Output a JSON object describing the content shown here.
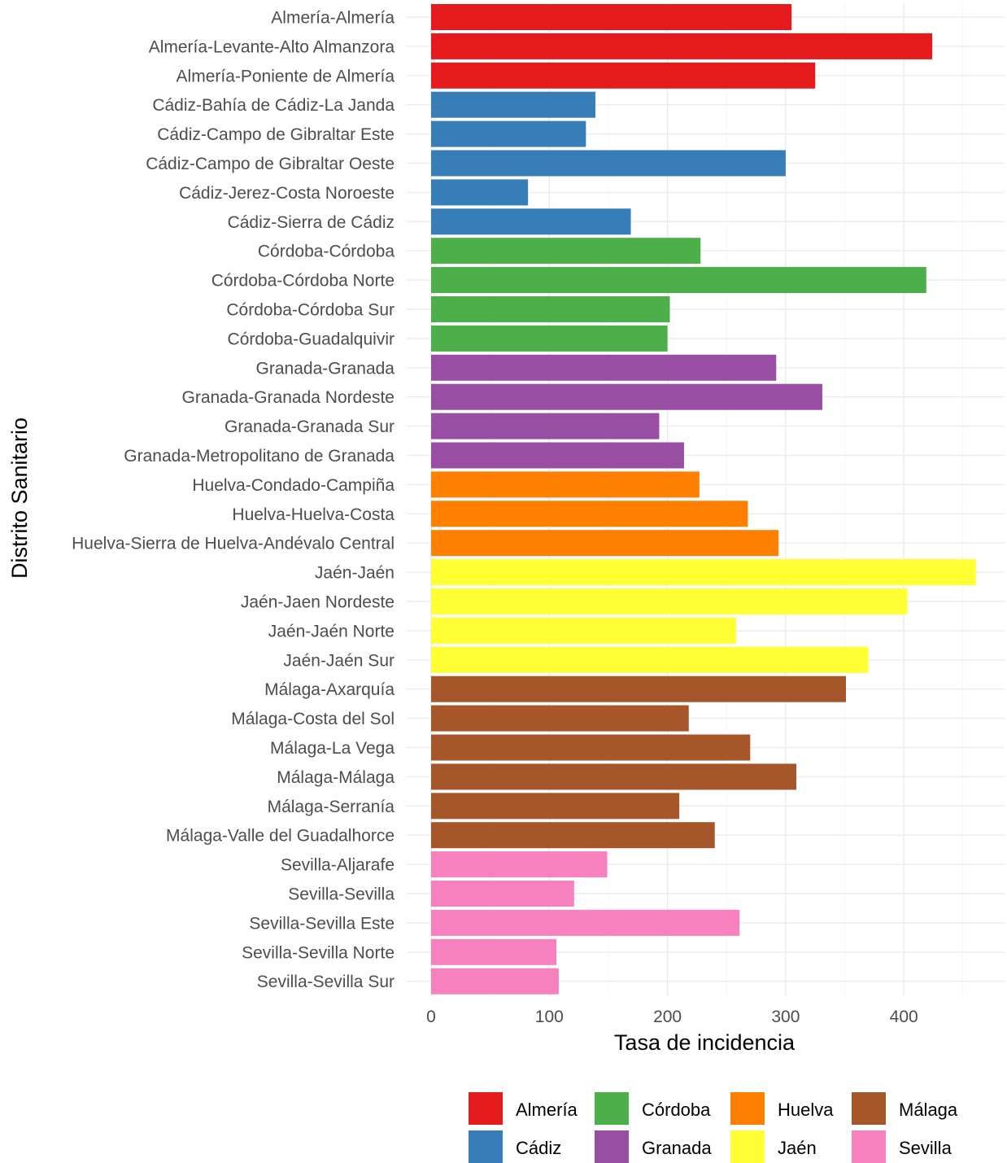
{
  "chart_data": {
    "type": "bar",
    "orientation": "horizontal",
    "xlabel": "Tasa de incidencia",
    "ylabel": "Distrito Sanitario",
    "xlim": [
      0,
      462
    ],
    "x_ticks": [
      0,
      100,
      200,
      300,
      400
    ],
    "grid": true,
    "legend_position": "bottom",
    "categories": [
      "Almería-Almería",
      "Almería-Levante-Alto Almanzora",
      "Almería-Poniente de Almería",
      "Cádiz-Bahía de Cádiz-La Janda",
      "Cádiz-Campo de Gibraltar Este",
      "Cádiz-Campo de Gibraltar Oeste",
      "Cádiz-Jerez-Costa Noroeste",
      "Cádiz-Sierra de Cádiz",
      "Córdoba-Córdoba",
      "Córdoba-Córdoba Norte",
      "Córdoba-Córdoba Sur",
      "Córdoba-Guadalquivir",
      "Granada-Granada",
      "Granada-Granada Nordeste",
      "Granada-Granada Sur",
      "Granada-Metropolitano de Granada",
      "Huelva-Condado-Campiña",
      "Huelva-Huelva-Costa",
      "Huelva-Sierra de Huelva-Andévalo Central",
      "Jaén-Jaén",
      "Jaén-Jaen Nordeste",
      "Jaén-Jaén Norte",
      "Jaén-Jaén Sur",
      "Málaga-Axarquía",
      "Málaga-Costa del Sol",
      "Málaga-La Vega",
      "Málaga-Málaga",
      "Málaga-Serranía",
      "Málaga-Valle del Guadalhorce",
      "Sevilla-Aljarafe",
      "Sevilla-Sevilla",
      "Sevilla-Sevilla Este",
      "Sevilla-Sevilla Norte",
      "Sevilla-Sevilla Sur"
    ],
    "values": [
      305,
      424,
      325,
      139,
      131,
      300,
      82,
      169,
      228,
      419,
      202,
      200,
      292,
      331,
      193,
      214,
      227,
      268,
      294,
      461,
      403,
      258,
      370,
      351,
      218,
      270,
      309,
      210,
      240,
      149,
      121,
      261,
      106,
      108
    ],
    "groups": [
      "Almería",
      "Almería",
      "Almería",
      "Cádiz",
      "Cádiz",
      "Cádiz",
      "Cádiz",
      "Cádiz",
      "Córdoba",
      "Córdoba",
      "Córdoba",
      "Córdoba",
      "Granada",
      "Granada",
      "Granada",
      "Granada",
      "Huelva",
      "Huelva",
      "Huelva",
      "Jaén",
      "Jaén",
      "Jaén",
      "Jaén",
      "Málaga",
      "Málaga",
      "Málaga",
      "Málaga",
      "Málaga",
      "Málaga",
      "Sevilla",
      "Sevilla",
      "Sevilla",
      "Sevilla",
      "Sevilla"
    ],
    "legend": [
      {
        "name": "Almería",
        "color": "#E41A1C"
      },
      {
        "name": "Córdoba",
        "color": "#4DAF4A"
      },
      {
        "name": "Huelva",
        "color": "#FF7F00"
      },
      {
        "name": "Málaga",
        "color": "#A65628"
      },
      {
        "name": "Cádiz",
        "color": "#377EB8"
      },
      {
        "name": "Granada",
        "color": "#984EA3"
      },
      {
        "name": "Jaén",
        "color": "#FFFF33"
      },
      {
        "name": "Sevilla",
        "color": "#F781BF"
      }
    ]
  }
}
